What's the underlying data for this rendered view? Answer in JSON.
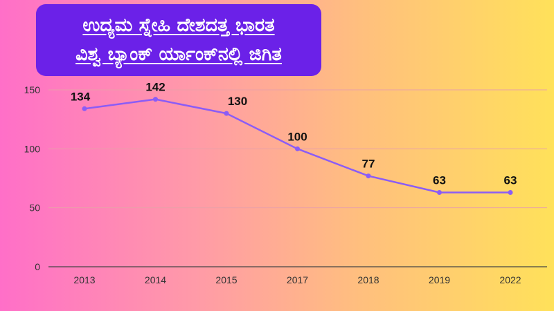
{
  "header": {
    "title_line1": "ಉದ್ಯಮ ಸ್ನೇಹಿ ದೇಶದತ್ತ ಭಾರತ",
    "title_line2": "ವಿಶ್ವ ಬ್ಯಾಂಕ್ ರ್ಯಾಂಕ್‌ನಲ್ಲಿ ಜಿಗಿತ"
  },
  "colors": {
    "line": "#8b5cf6",
    "title_bg": "#6b21e8",
    "grid": "#e9a0a8"
  },
  "chart_data": {
    "type": "line",
    "title": "ಉದ್ಯಮ ಸ್ನೇಹಿ ದೇಶದತ್ತ ಭಾರತ ವಿಶ್ವ ಬ್ಯಾಂಕ್ ರ್ಯಾಂಕ್‌ನಲ್ಲಿ ಜಿಗಿತ",
    "xlabel": "",
    "ylabel": "",
    "categories": [
      "2013",
      "2014",
      "2015",
      "2017",
      "2018",
      "2019",
      "2022"
    ],
    "series": [
      {
        "values": [
          134,
          142,
          130,
          100,
          77,
          63,
          63
        ]
      }
    ],
    "ylim": [
      0,
      150
    ],
    "yticks": [
      0,
      50,
      100,
      150
    ],
    "grid": true,
    "legend": "none",
    "data_labels": true
  }
}
